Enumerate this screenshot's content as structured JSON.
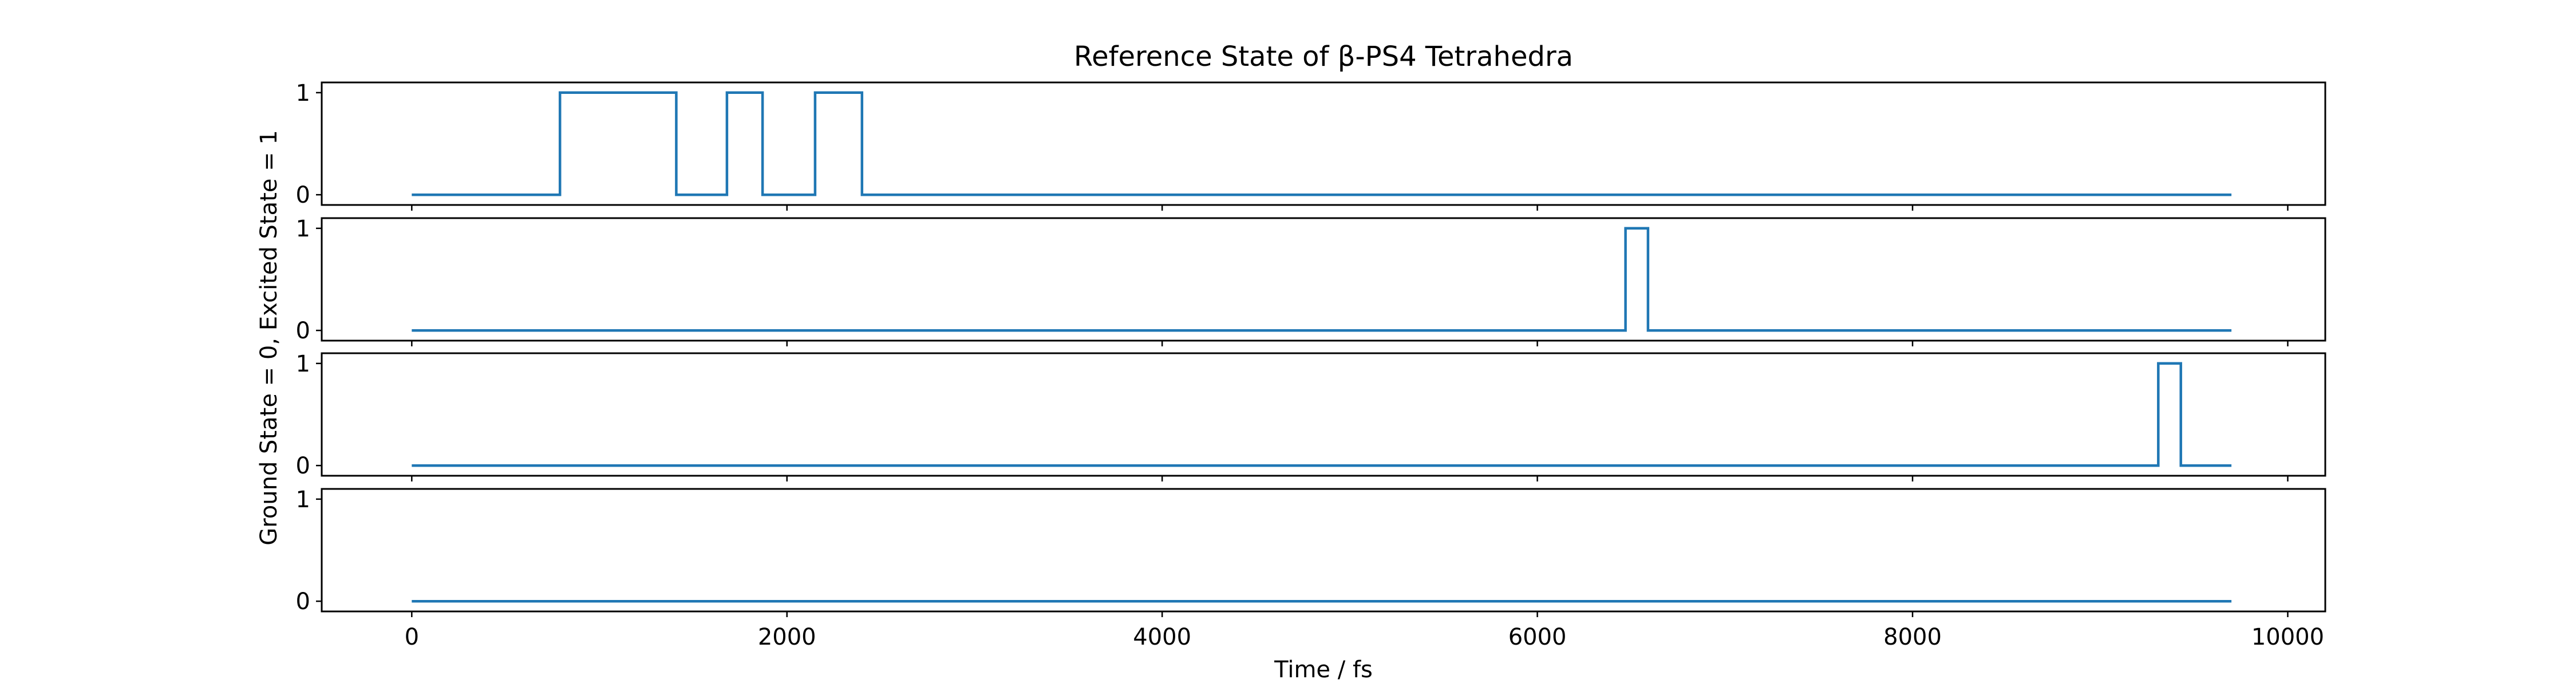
{
  "chart_data": {
    "type": "line",
    "title": "Reference State of β-PS4 Tetrahedra",
    "xlabel": "Time / fs",
    "ylabel": "Ground State = 0, Excited State = 1",
    "xlim": [
      -480,
      10200
    ],
    "ylim": [
      -0.1,
      1.1
    ],
    "xticks": [
      {
        "value": 0,
        "label": "0"
      },
      {
        "value": 2000,
        "label": "2000"
      },
      {
        "value": 4000,
        "label": "4000"
      },
      {
        "value": 6000,
        "label": "6000"
      },
      {
        "value": 8000,
        "label": "8000"
      },
      {
        "value": 10000,
        "label": "10000"
      }
    ],
    "yticks": [
      {
        "value": 0,
        "label": "0"
      },
      {
        "value": 1,
        "label": "1"
      }
    ],
    "grid": false,
    "line_color": "#1f77b4",
    "series": [
      {
        "x": [
          0,
          790,
          790,
          1410,
          1410,
          1680,
          1680,
          1870,
          1870,
          2150,
          2150,
          2400,
          2400,
          9700
        ],
        "y": [
          0,
          0,
          1,
          1,
          0,
          0,
          1,
          1,
          0,
          0,
          1,
          1,
          0,
          0
        ]
      },
      {
        "x": [
          0,
          6470,
          6470,
          6590,
          6590,
          9700
        ],
        "y": [
          0,
          0,
          1,
          1,
          0,
          0
        ]
      },
      {
        "x": [
          0,
          9310,
          9310,
          9430,
          9430,
          9700
        ],
        "y": [
          0,
          0,
          1,
          1,
          0,
          0
        ]
      },
      {
        "x": [
          0,
          9700
        ],
        "y": [
          0,
          0
        ]
      }
    ]
  }
}
